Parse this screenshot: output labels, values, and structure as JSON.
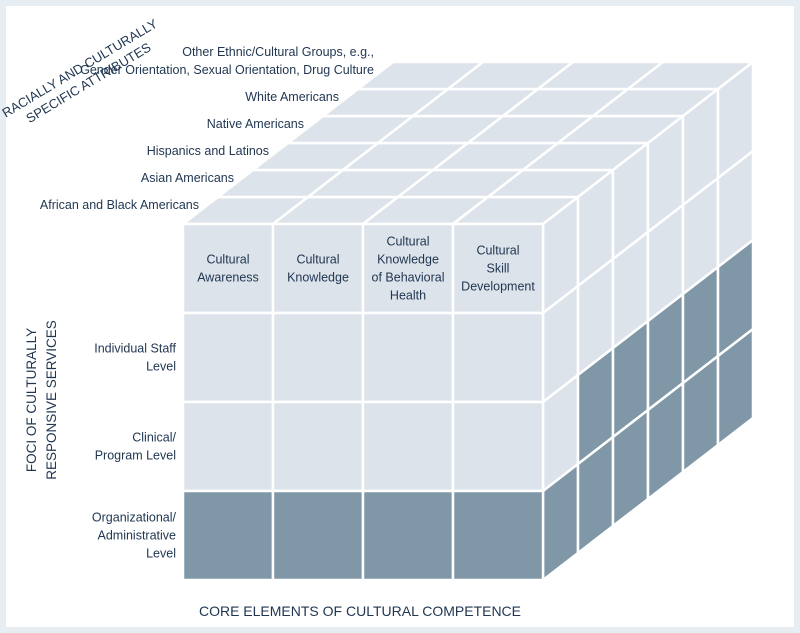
{
  "axis_titles": {
    "depth": [
      "RACIALLY AND CULTURALLY",
      "SPECIFIC ATTRIBUTES"
    ],
    "vertical": [
      "FOCI OF CULTURALLY",
      "RESPONSIVE SERVICES"
    ],
    "horizontal": "CORE ELEMENTS OF CULTURAL COMPETENCE"
  },
  "groups": [
    {
      "lines": [
        "African and Black Americans"
      ]
    },
    {
      "lines": [
        "Asian Americans"
      ]
    },
    {
      "lines": [
        "Hispanics and Latinos"
      ]
    },
    {
      "lines": [
        "Native Americans"
      ]
    },
    {
      "lines": [
        "White Americans"
      ]
    },
    {
      "lines": [
        "Other Ethnic/Cultural Groups, e.g.,",
        "Gender Orientation, Sexual Orientation, Drug Culture"
      ]
    }
  ],
  "elements": [
    {
      "lines": [
        "Cultural",
        "Awareness"
      ]
    },
    {
      "lines": [
        "Cultural",
        "Knowledge"
      ]
    },
    {
      "lines": [
        "Cultural",
        "Knowledge",
        "of Behavioral",
        "Health"
      ]
    },
    {
      "lines": [
        "Cultural",
        "Skill",
        "Development"
      ]
    }
  ],
  "levels": [
    {
      "lines": [
        "Individual Staff",
        "Level"
      ]
    },
    {
      "lines": [
        "Clinical/",
        "Program Level"
      ]
    },
    {
      "lines": [
        "Organizational/",
        "Administrative",
        "Level"
      ]
    }
  ],
  "colors": {
    "background": "#e6edf3",
    "face_light": "#dde3ea",
    "face_dark": "#7f97a6",
    "grid": "#ffffff",
    "text": "#1f3550"
  }
}
